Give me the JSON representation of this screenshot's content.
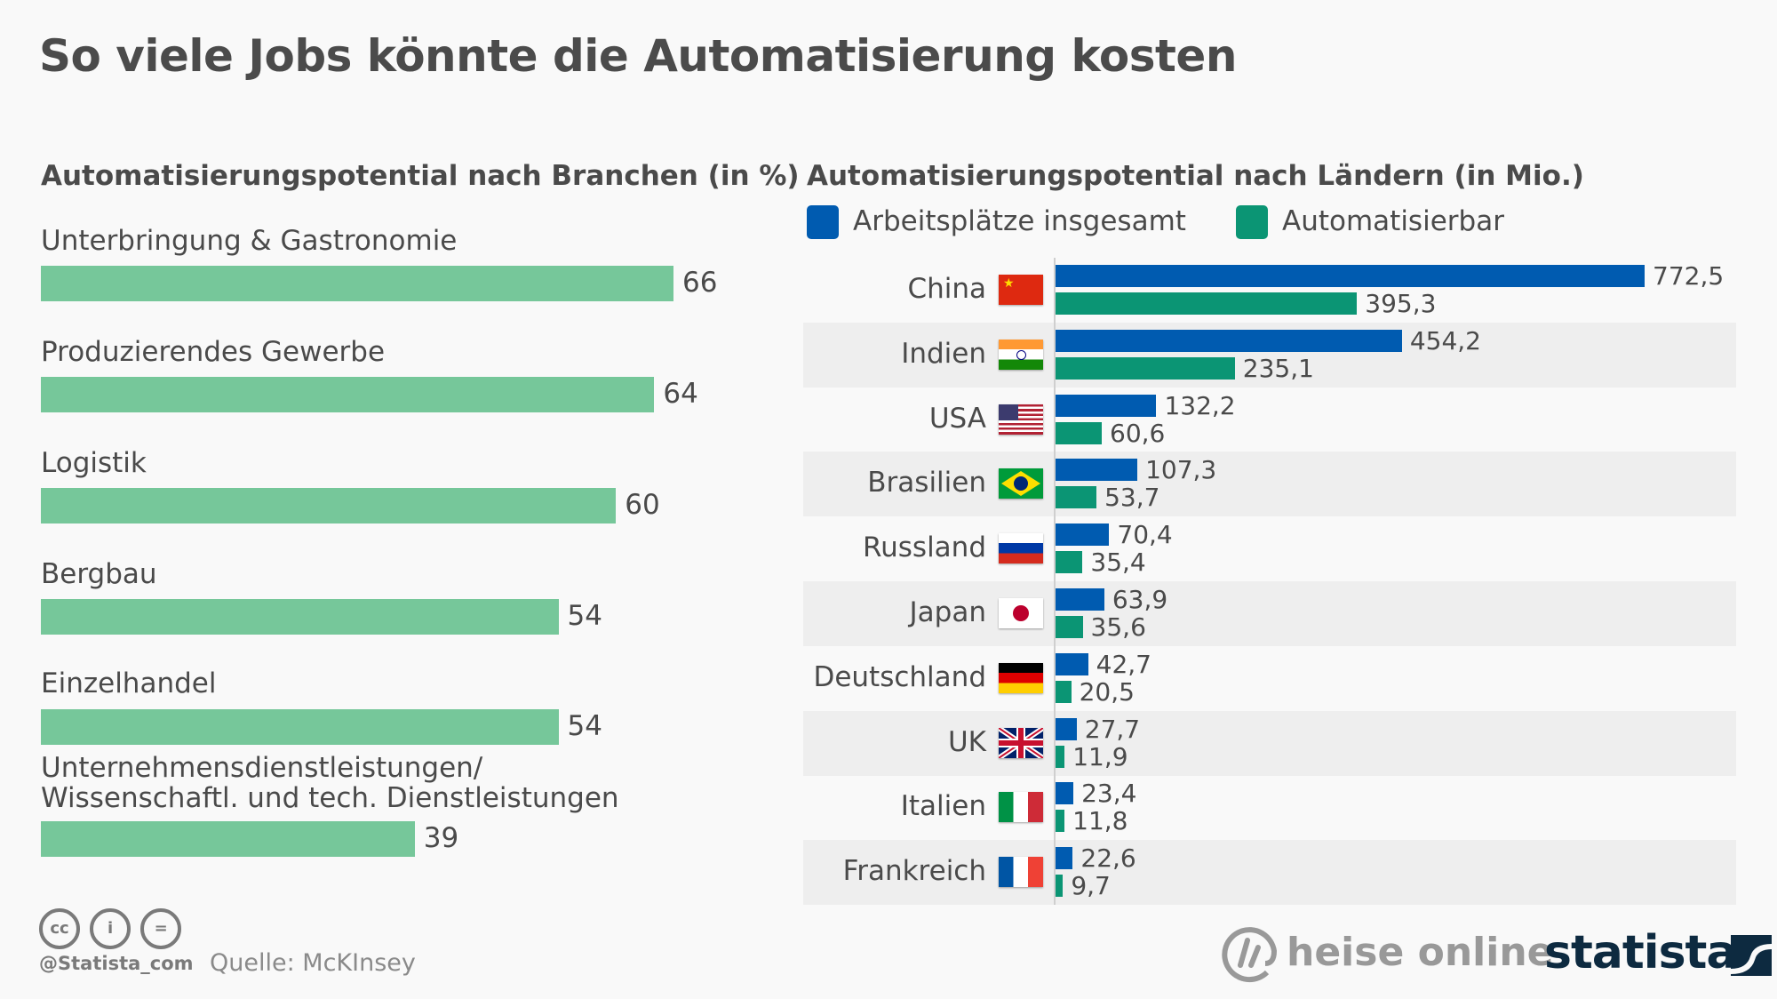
{
  "title": "So viele Jobs könnte die Automatisierung kosten",
  "footer": {
    "license_icons": [
      "cc-icon",
      "attribution-icon",
      "no-derivatives-icon"
    ],
    "cc_glyphs": [
      "cc",
      "i",
      "="
    ],
    "handle": "@Statista_com",
    "source": "Quelle: McKInsey",
    "heise_logo_text": "heise online",
    "statista_logo_text": "statista"
  },
  "colors": {
    "sector_bar": "#76c79a",
    "total": "#005bb0",
    "automatable": "#0b9574",
    "band": "#eeeeee",
    "text": "#4a4a4a"
  },
  "chart_data": [
    {
      "type": "bar",
      "orientation": "horizontal",
      "title": "Automatisierungspotential nach Branchen (in %)",
      "categories": [
        "Unterbringung & Gastronomie",
        "Produzierendes Gewerbe",
        "Logistik",
        "Bergbau",
        "Einzelhandel",
        "Unternehmensdienstleistungen/\nWissenschaftl. und tech. Dienstleistungen"
      ],
      "category_lines": [
        [
          "Unterbringung & Gastronomie"
        ],
        [
          "Produzierendes Gewerbe"
        ],
        [
          "Logistik"
        ],
        [
          "Bergbau"
        ],
        [
          "Einzelhandel"
        ],
        [
          "Unternehmensdienstleistungen/",
          "Wissenschaftl. und tech. Dienstleistungen"
        ]
      ],
      "values": [
        66,
        64,
        60,
        54,
        54,
        39
      ],
      "value_labels": [
        "66",
        "64",
        "60",
        "54",
        "54",
        "39"
      ],
      "xlim": [
        0,
        66
      ],
      "unit": "%",
      "grid": false
    },
    {
      "type": "bar",
      "orientation": "horizontal",
      "title": "Automatisierungspotential nach Ländern (in Mio.)",
      "legend_position": "top-left",
      "categories": [
        "China",
        "Indien",
        "USA",
        "Brasilien",
        "Russland",
        "Japan",
        "Deutschland",
        "UK",
        "Italien",
        "Frankreich"
      ],
      "flags": [
        "china-flag-icon",
        "india-flag-icon",
        "usa-flag-icon",
        "brazil-flag-icon",
        "russia-flag-icon",
        "japan-flag-icon",
        "germany-flag-icon",
        "uk-flag-icon",
        "italy-flag-icon",
        "france-flag-icon"
      ],
      "series": [
        {
          "name": "Arbeitsplätze insgesamt",
          "color": "#005bb0",
          "values": [
            772.5,
            454.2,
            132.2,
            107.3,
            70.4,
            63.9,
            42.7,
            27.7,
            23.4,
            22.6
          ],
          "labels": [
            "772,5",
            "454,2",
            "132,2",
            "107,3",
            "70,4",
            "63,9",
            "42,7",
            "27,7",
            "23,4",
            "22,6"
          ]
        },
        {
          "name": "Automatisierbar",
          "color": "#0b9574",
          "values": [
            395.3,
            235.1,
            60.6,
            53.7,
            35.4,
            35.6,
            20.5,
            11.9,
            11.8,
            9.7
          ],
          "labels": [
            "395,3",
            "235,1",
            "60,6",
            "53,7",
            "35,4",
            "35,6",
            "20,5",
            "11,9",
            "11,8",
            "9,7"
          ]
        }
      ],
      "xlim": [
        0,
        772.5
      ],
      "unit": "Mio.",
      "grid": false
    }
  ]
}
